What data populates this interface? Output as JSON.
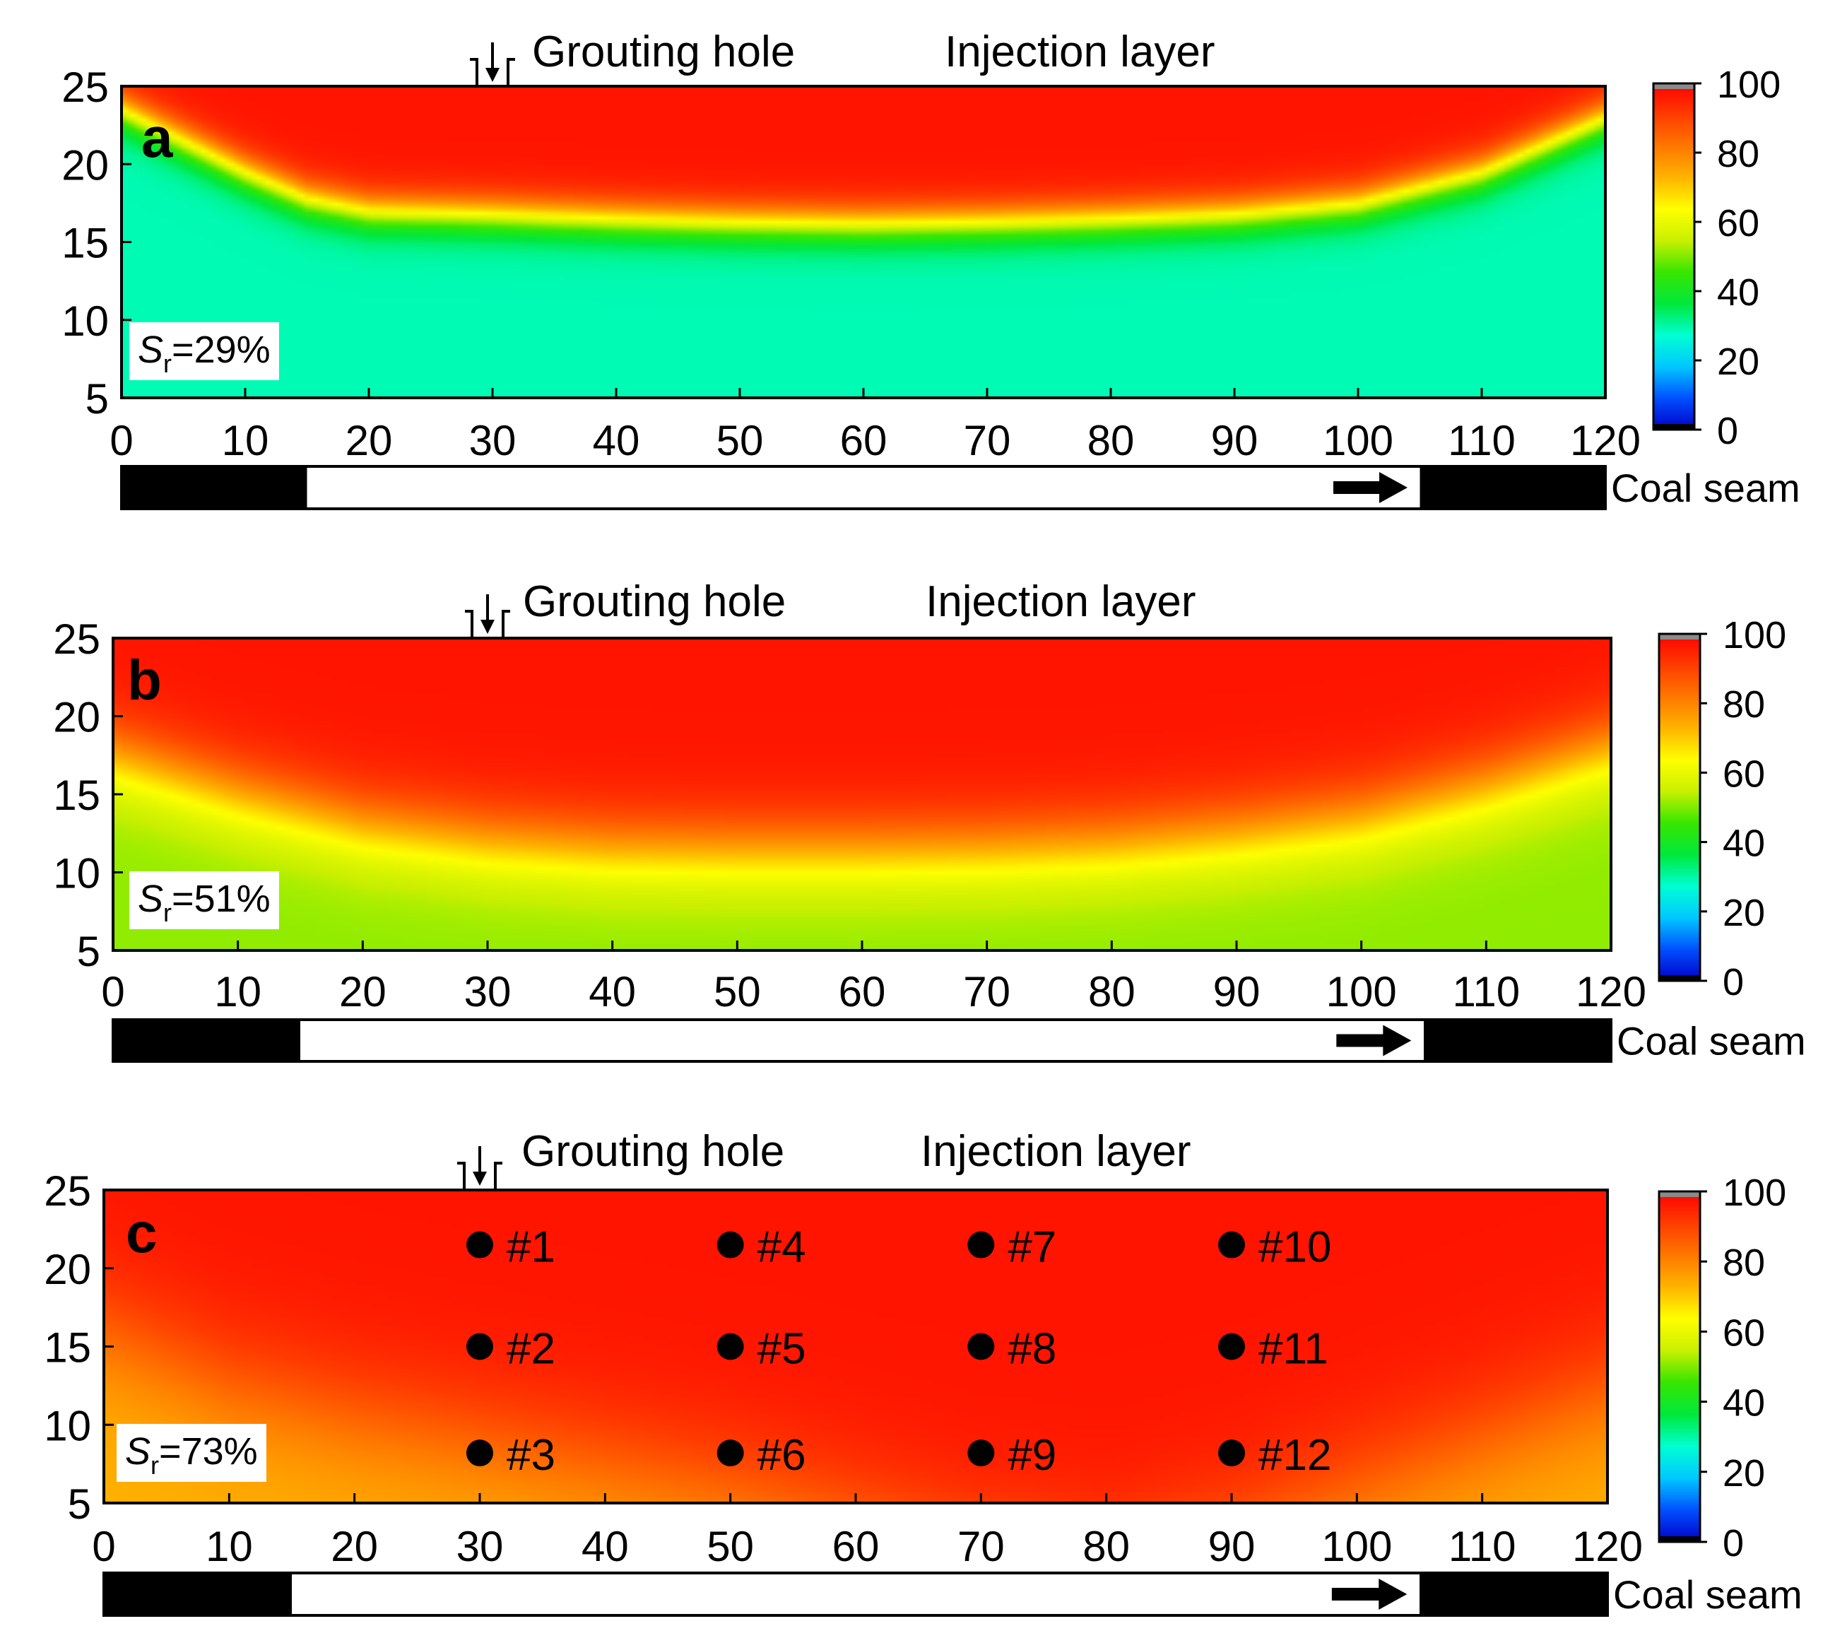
{
  "colors": {
    "background": "#ffffff",
    "seam_black": "#000000",
    "colormap": [
      "#0000c8",
      "#0050ff",
      "#00c8ff",
      "#00ffd2",
      "#00e83c",
      "#37e600",
      "#c8f000",
      "#ffff00",
      "#ffb400",
      "#ff7800",
      "#ff3c00",
      "#ff0000"
    ],
    "colorbar_top_cap": "#8a8a8a"
  },
  "labels": {
    "grouting_hole": "Grouting hole",
    "injection_layer": "Injection layer",
    "coal_seam": "Coal seam"
  },
  "chart_data": [
    {
      "type": "heatmap",
      "panel": "a",
      "sr_prefix": "S",
      "sr_subscript": "r",
      "sr_value": "=29%",
      "xlim": [
        0,
        120
      ],
      "ylim": [
        5,
        25
      ],
      "x_ticks": [
        "0",
        "10",
        "20",
        "30",
        "40",
        "50",
        "60",
        "70",
        "80",
        "90",
        "100",
        "110",
        "120"
      ],
      "y_ticks": [
        "5",
        "10",
        "15",
        "20",
        "25"
      ],
      "colorbar_range": [
        0,
        100
      ],
      "colorbar_ticks": [
        "0",
        "20",
        "40",
        "60",
        "80",
        "100"
      ],
      "background_value": 29,
      "grouting_hole_x": 30,
      "front_profile": {
        "x": [
          0,
          5,
          10,
          15,
          20,
          30,
          40,
          50,
          60,
          70,
          80,
          90,
          100,
          110,
          120
        ],
        "y": [
          23.5,
          21.5,
          19.5,
          17.8,
          17.0,
          16.8,
          16.5,
          16.3,
          16.2,
          16.3,
          16.5,
          16.8,
          17.5,
          19.5,
          23.0
        ]
      },
      "front_width": 3.0,
      "seam_blocks_x": [
        [
          0,
          15
        ],
        [
          105,
          120
        ]
      ],
      "advance_arrow_x": [
        98,
        104
      ]
    },
    {
      "type": "heatmap",
      "panel": "b",
      "sr_prefix": "S",
      "sr_subscript": "r",
      "sr_value": "=51%",
      "xlim": [
        0,
        120
      ],
      "ylim": [
        5,
        25
      ],
      "x_ticks": [
        "0",
        "10",
        "20",
        "30",
        "40",
        "50",
        "60",
        "70",
        "80",
        "90",
        "100",
        "110",
        "120"
      ],
      "y_ticks": [
        "5",
        "10",
        "15",
        "20",
        "25"
      ],
      "colorbar_range": [
        0,
        100
      ],
      "colorbar_ticks": [
        "0",
        "20",
        "40",
        "60",
        "80",
        "100"
      ],
      "background_value": 51,
      "grouting_hole_x": 30,
      "front_profile": {
        "x": [
          0,
          10,
          20,
          30,
          40,
          50,
          60,
          70,
          80,
          90,
          100,
          110,
          120
        ],
        "y": [
          17.5,
          15.0,
          13.0,
          12.0,
          11.5,
          11.4,
          11.4,
          11.5,
          11.8,
          12.5,
          13.5,
          15.5,
          18.0
        ]
      },
      "front_width": 6.0,
      "seam_blocks_x": [
        [
          0,
          15
        ],
        [
          105,
          120
        ]
      ],
      "advance_arrow_x": [
        98,
        104
      ]
    },
    {
      "type": "heatmap",
      "panel": "c",
      "sr_prefix": "S",
      "sr_subscript": "r",
      "sr_value": "=73%",
      "xlim": [
        0,
        120
      ],
      "ylim": [
        5,
        25
      ],
      "x_ticks": [
        "0",
        "10",
        "20",
        "30",
        "40",
        "50",
        "60",
        "70",
        "80",
        "90",
        "100",
        "110",
        "120"
      ],
      "y_ticks": [
        "5",
        "10",
        "15",
        "20",
        "25"
      ],
      "colorbar_range": [
        0,
        100
      ],
      "colorbar_ticks": [
        "0",
        "20",
        "40",
        "60",
        "80",
        "100"
      ],
      "background_value": 73,
      "grouting_hole_x": 30,
      "front_profile": {
        "x": [
          0,
          10,
          20,
          30,
          40,
          50,
          60,
          70,
          80,
          90,
          100,
          110,
          120
        ],
        "y": [
          16.0,
          12.5,
          10.5,
          9.0,
          7.5,
          6.0,
          4.0,
          2.0,
          1.0,
          3.0,
          6.0,
          9.0,
          12.0
        ]
      },
      "front_width": 10.0,
      "seam_blocks_x": [
        [
          0,
          15
        ],
        [
          105,
          120
        ]
      ],
      "advance_arrow_x": [
        98,
        104
      ],
      "monitoring_points": [
        {
          "label": "#1",
          "x": 30,
          "y": 21.5
        },
        {
          "label": "#2",
          "x": 30,
          "y": 15.0
        },
        {
          "label": "#3",
          "x": 30,
          "y": 8.2
        },
        {
          "label": "#4",
          "x": 50,
          "y": 21.5
        },
        {
          "label": "#5",
          "x": 50,
          "y": 15.0
        },
        {
          "label": "#6",
          "x": 50,
          "y": 8.2
        },
        {
          "label": "#7",
          "x": 70,
          "y": 21.5
        },
        {
          "label": "#8",
          "x": 70,
          "y": 15.0
        },
        {
          "label": "#9",
          "x": 70,
          "y": 8.2
        },
        {
          "label": "#10",
          "x": 90,
          "y": 21.5
        },
        {
          "label": "#11",
          "x": 90,
          "y": 15.0
        },
        {
          "label": "#12",
          "x": 90,
          "y": 8.2
        }
      ]
    }
  ]
}
